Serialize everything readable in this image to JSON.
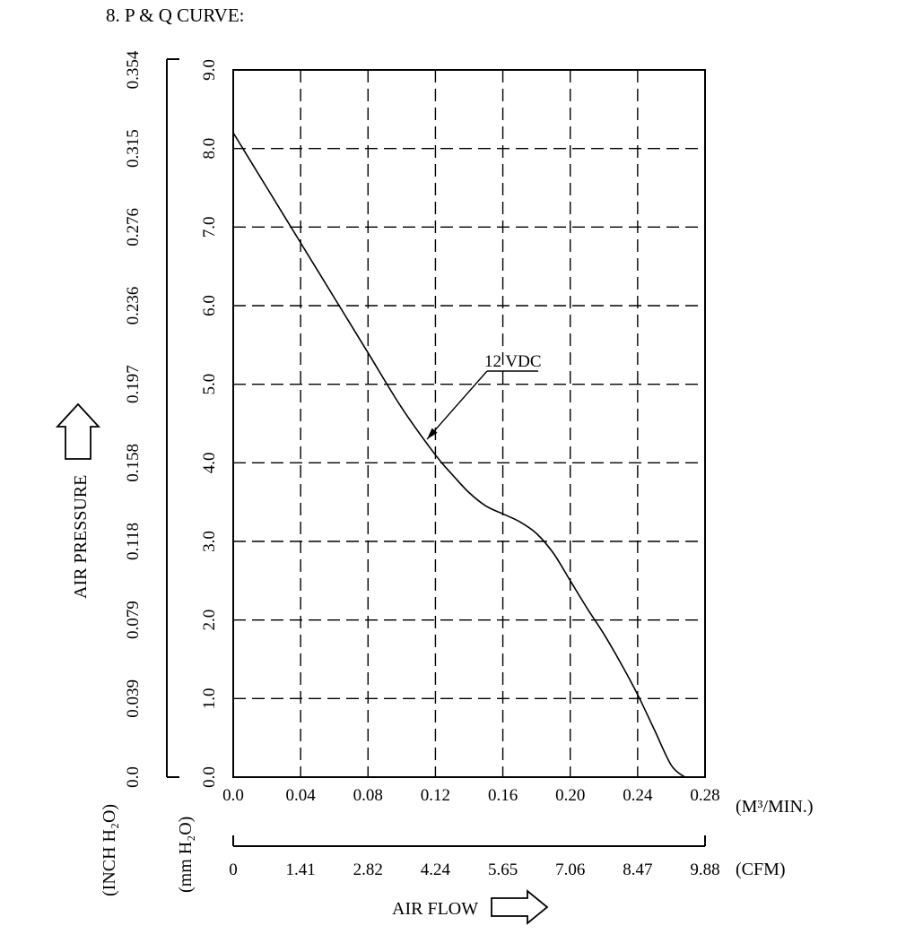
{
  "title": "8. P & Q CURVE:",
  "chart_data": {
    "type": "line",
    "title": "8. P & Q CURVE:",
    "xlabel": "AIR FLOW",
    "ylabel": "AIR PRESSURE",
    "x_unit": "(M³/MIN.)",
    "x2_unit": "(CFM)",
    "y_unit": "(mm H₂O)",
    "y2_unit": "(INCH H₂O)",
    "xlim": [
      0,
      0.28
    ],
    "ylim": [
      0,
      9
    ],
    "grid": true,
    "x_ticks": [
      "0.0",
      "0.04",
      "0.08",
      "0.12",
      "0.16",
      "0.20",
      "0.24",
      "0.28"
    ],
    "x2_ticks": [
      "0",
      "1.41",
      "2.82",
      "4.24",
      "5.65",
      "7.06",
      "8.47",
      "9.88"
    ],
    "y_ticks": [
      "0.0",
      "1.0",
      "2.0",
      "3.0",
      "4.0",
      "5.0",
      "6.0",
      "7.0",
      "8.0",
      "9.0"
    ],
    "y2_ticks": [
      "0.0",
      "0.039",
      "0.079",
      "0.118",
      "0.158",
      "0.197",
      "0.236",
      "0.276",
      "0.315",
      "0.354"
    ],
    "series": [
      {
        "name": "12 VDC",
        "x": [
          0.0,
          0.02,
          0.04,
          0.06,
          0.08,
          0.1,
          0.12,
          0.13,
          0.14,
          0.15,
          0.16,
          0.17,
          0.18,
          0.19,
          0.2,
          0.21,
          0.22,
          0.23,
          0.24,
          0.25,
          0.26,
          0.268
        ],
        "y": [
          8.2,
          7.5,
          6.8,
          6.1,
          5.4,
          4.7,
          4.1,
          3.85,
          3.62,
          3.45,
          3.35,
          3.25,
          3.1,
          2.85,
          2.5,
          2.15,
          1.82,
          1.45,
          1.05,
          0.6,
          0.15,
          0.0
        ]
      }
    ],
    "annotations": [
      {
        "text": "12 VDC",
        "points_to": {
          "x": 0.115,
          "y": 4.3
        }
      }
    ]
  }
}
